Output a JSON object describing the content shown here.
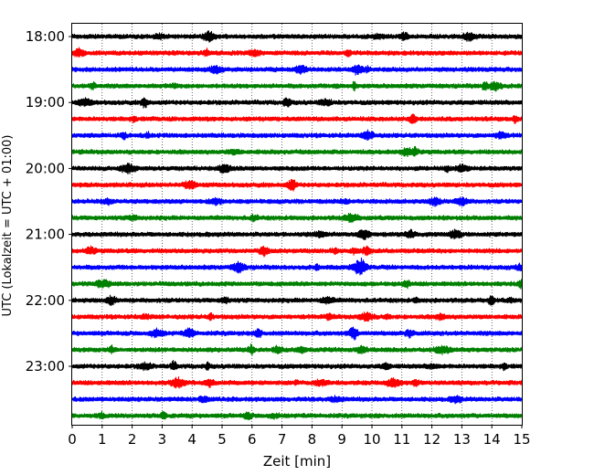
{
  "chart_data": {
    "type": "line",
    "subtype": "helicorder",
    "xlabel": "Zeit  [min]",
    "ylabel": "UTC (Lokalzeit = UTC + 01:00)",
    "xlim": [
      0,
      15
    ],
    "x_ticks": [
      0,
      1,
      2,
      3,
      4,
      5,
      6,
      7,
      8,
      9,
      10,
      11,
      12,
      13,
      14,
      15
    ],
    "trace_start_times": [
      "18:00",
      "18:15",
      "18:30",
      "18:45",
      "19:00",
      "19:15",
      "19:30",
      "19:45",
      "20:00",
      "20:15",
      "20:30",
      "20:45",
      "21:00",
      "21:15",
      "21:30",
      "21:45",
      "22:00",
      "22:15",
      "22:30",
      "22:45",
      "23:00",
      "23:15",
      "23:30",
      "23:45"
    ],
    "y_tick_labels": [
      "18:00",
      "19:00",
      "20:00",
      "21:00",
      "22:00",
      "23:00"
    ],
    "trace_colors": [
      "#000000",
      "#ff0000",
      "#0000ff",
      "#008000"
    ],
    "vertical_grid": "dotted at each minute"
  }
}
